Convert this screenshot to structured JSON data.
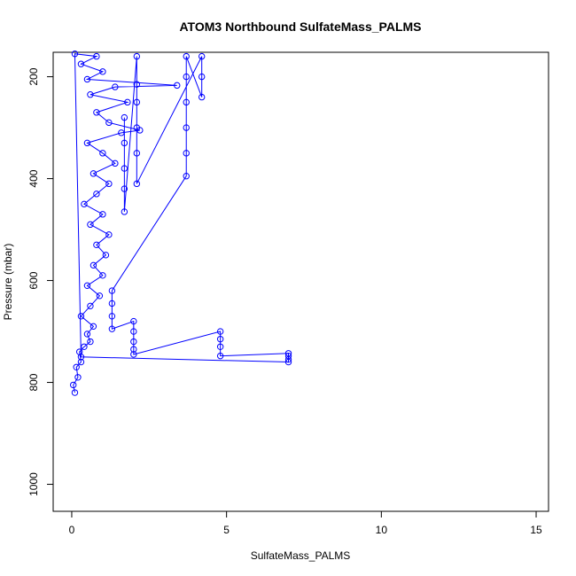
{
  "chart_data": {
    "type": "scatter",
    "title": "ATOM3 Northbound SulfateMass_PALMS",
    "xlabel": "SulfateMass_PALMS",
    "ylabel": "Pressure (mbar)",
    "xlim": [
      -0.6,
      15.4
    ],
    "ylim": [
      1053,
      152
    ],
    "y_inverted": true,
    "xticks": [
      0,
      5,
      10,
      15
    ],
    "yticks": [
      200,
      400,
      600,
      800,
      1000
    ],
    "marker": "open-circle",
    "connected": true,
    "color": "#0000ff",
    "series": [
      {
        "name": "SulfateMass_PALMS",
        "color": "#0000ff",
        "points": [
          [
            0.1,
            820
          ],
          [
            0.05,
            805
          ],
          [
            0.2,
            790
          ],
          [
            0.15,
            770
          ],
          [
            0.3,
            760
          ],
          [
            0.25,
            740
          ],
          [
            0.4,
            730
          ],
          [
            0.6,
            720
          ],
          [
            0.5,
            705
          ],
          [
            0.7,
            690
          ],
          [
            0.3,
            670
          ],
          [
            0.6,
            650
          ],
          [
            0.9,
            630
          ],
          [
            0.5,
            610
          ],
          [
            1.0,
            590
          ],
          [
            0.7,
            570
          ],
          [
            1.1,
            550
          ],
          [
            0.8,
            530
          ],
          [
            1.2,
            510
          ],
          [
            0.6,
            490
          ],
          [
            1.0,
            470
          ],
          [
            0.4,
            450
          ],
          [
            0.8,
            430
          ],
          [
            1.2,
            410
          ],
          [
            0.7,
            390
          ],
          [
            1.4,
            370
          ],
          [
            1.0,
            350
          ],
          [
            0.5,
            330
          ],
          [
            1.6,
            310
          ],
          [
            2.2,
            305
          ],
          [
            1.2,
            290
          ],
          [
            0.8,
            270
          ],
          [
            1.8,
            250
          ],
          [
            0.6,
            235
          ],
          [
            1.4,
            220
          ],
          [
            3.4,
            217
          ],
          [
            0.5,
            205
          ],
          [
            1.0,
            190
          ],
          [
            0.3,
            175
          ],
          [
            0.8,
            160
          ],
          [
            0.1,
            155
          ],
          [
            0.3,
            750
          ],
          [
            7.0,
            760
          ],
          [
            7.0,
            755
          ],
          [
            7.0,
            748
          ],
          [
            7.0,
            743
          ],
          [
            4.8,
            748
          ],
          [
            4.8,
            730
          ],
          [
            4.8,
            715
          ],
          [
            4.8,
            700
          ],
          [
            2.0,
            745
          ],
          [
            2.0,
            735
          ],
          [
            2.0,
            720
          ],
          [
            2.0,
            700
          ],
          [
            2.0,
            680
          ],
          [
            1.3,
            695
          ],
          [
            1.3,
            670
          ],
          [
            1.3,
            645
          ],
          [
            1.3,
            620
          ],
          [
            3.7,
            395
          ],
          [
            3.7,
            350
          ],
          [
            3.7,
            300
          ],
          [
            3.7,
            250
          ],
          [
            3.7,
            200
          ],
          [
            3.7,
            160
          ],
          [
            4.2,
            240
          ],
          [
            4.2,
            200
          ],
          [
            4.2,
            160
          ],
          [
            2.1,
            410
          ],
          [
            2.1,
            350
          ],
          [
            2.1,
            300
          ],
          [
            2.1,
            250
          ],
          [
            2.1,
            215
          ],
          [
            2.1,
            160
          ],
          [
            1.7,
            465
          ],
          [
            1.7,
            420
          ],
          [
            1.7,
            380
          ],
          [
            1.7,
            330
          ],
          [
            1.7,
            280
          ]
        ]
      }
    ]
  }
}
